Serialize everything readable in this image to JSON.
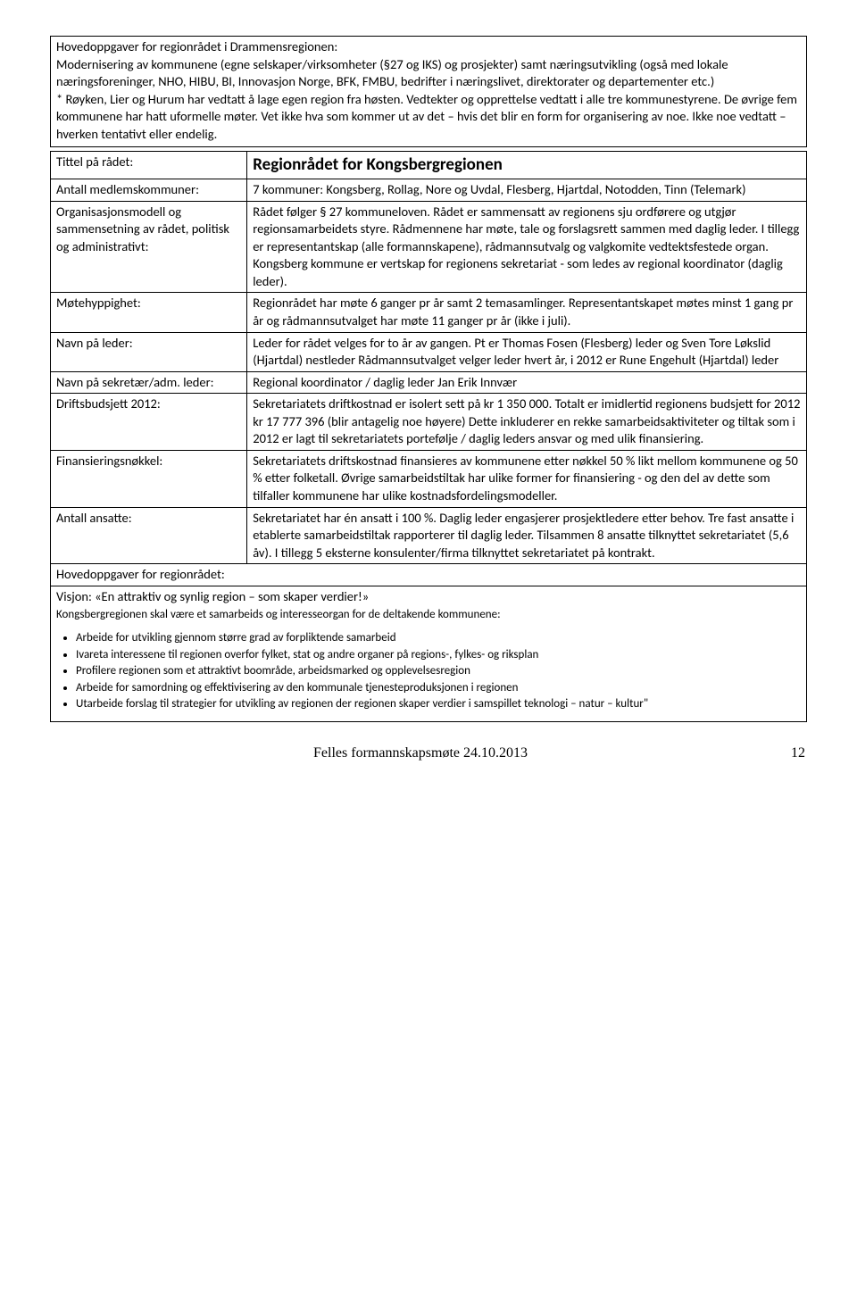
{
  "intro": {
    "heading": "Hovedoppgaver for regionrådet i Drammensregionen:",
    "body": "Modernisering av kommunene (egne selskaper/virksomheter (§27 og IKS) og prosjekter) samt næringsutvikling (også med lokale næringsforeninger, NHO, HIBU, BI, Innovasjon Norge, BFK, FMBU, bedrifter i næringslivet, direktorater og departementer etc.)\n* Røyken, Lier og Hurum har vedtatt å lage egen region fra høsten. Vedtekter og opprettelse vedtatt i alle tre kommunestyrene. De øvrige fem kommunene har hatt uformelle møter. Vet ikke hva som kommer ut av det – hvis det blir en form for organisering av noe. Ikke noe vedtatt – hverken tentativt eller endelig."
  },
  "rows": {
    "tittel": {
      "label": "Tittel på rådet:",
      "value": "Regionrådet for Kongsbergregionen"
    },
    "antall": {
      "label": "Antall medlemskommuner:",
      "value": "7 kommuner: Kongsberg, Rollag, Nore og Uvdal, Flesberg, Hjartdal, Notodden, Tinn (Telemark)"
    },
    "org": {
      "label": "Organisasjonsmodell og sammensetning av rådet, politisk og administrativt:",
      "value": "Rådet følger § 27 kommuneloven. Rådet er sammensatt av regionens sju ordførere og utgjør regionsamarbeidets styre. Rådmennene har møte, tale og forslagsrett sammen med daglig leder. I tillegg er representantskap (alle formannskapene), rådmannsutvalg og valgkomite vedtektsfestede organ. Kongsberg kommune er vertskap for regionens sekretariat - som ledes av regional koordinator (daglig leder)."
    },
    "mote": {
      "label": "Møtehyppighet:",
      "value": "Regionrådet har møte 6 ganger pr år samt 2 temasamlinger. Representantskapet møtes minst 1 gang pr år og rådmannsutvalget har møte 11 ganger pr år (ikke i juli)."
    },
    "leder": {
      "label": "Navn på leder:",
      "value": "Leder for rådet velges for to år av gangen. Pt er Thomas Fosen (Flesberg) leder og Sven Tore Løkslid (Hjartdal) nestleder Rådmannsutvalget velger leder hvert år, i 2012 er Rune Engehult (Hjartdal) leder"
    },
    "sekr": {
      "label": "Navn på sekretær/adm. leder:",
      "value": "Regional koordinator / daglig leder Jan Erik Innvær"
    },
    "drift": {
      "label": "Driftsbudsjett 2012:",
      "value": "Sekretariatets driftkostnad er isolert sett på kr 1 350 000. Totalt er imidlertid regionens budsjett for 2012 kr 17 777 396 (blir antagelig noe høyere) Dette inkluderer en rekke samarbeidsaktiviteter og tiltak som i 2012 er lagt til sekretariatets portefølje / daglig leders ansvar og med ulik finansiering."
    },
    "fin": {
      "label": "Finansieringsnøkkel:",
      "value": "Sekretariatets driftskostnad finansieres av kommunene etter nøkkel 50 % likt mellom kommunene og 50 % etter folketall. Øvrige samarbeidstiltak har ulike former for finansiering - og den del av dette som tilfaller kommunene har ulike kostnadsfordelingsmodeller."
    },
    "ansatte": {
      "label": "Antall ansatte:",
      "value": "Sekretariatet har én ansatt i 100 %. Daglig leder engasjerer prosjektledere etter behov. Tre fast ansatte i etablerte samarbeidstiltak rapporterer til daglig leder. Tilsammen 8 ansatte tilknyttet sekretariatet (5,6 åv). I tillegg 5 eksterne konsulenter/firma tilknyttet sekretariatet på kontrakt."
    }
  },
  "hovedoppgaver_label": "Hovedoppgaver for regionrådet:",
  "visjon_line": "Visjon: «En attraktiv og synlig region – som skaper verdier!»",
  "visjon_sub": "Kongsbergregionen skal være et samarbeids og interesseorgan for de deltakende kommunene:",
  "bullets": [
    "Arbeide for utvikling gjennom større grad av forpliktende samarbeid",
    "Ivareta interessene til regionen overfor fylket, stat og andre organer på regions-, fylkes- og riksplan",
    "Profilere regionen som et attraktivt boområde, arbeidsmarked og opplevelsesregion",
    "Arbeide for samordning og effektivisering av den kommunale tjenesteproduksjonen i regionen",
    "Utarbeide forslag til strategier for utvikling av regionen der regionen skaper verdier i samspillet teknologi – natur – kultur\""
  ],
  "footer": {
    "text": "Felles formannskapsmøte 24.10.2013",
    "page": "12"
  }
}
